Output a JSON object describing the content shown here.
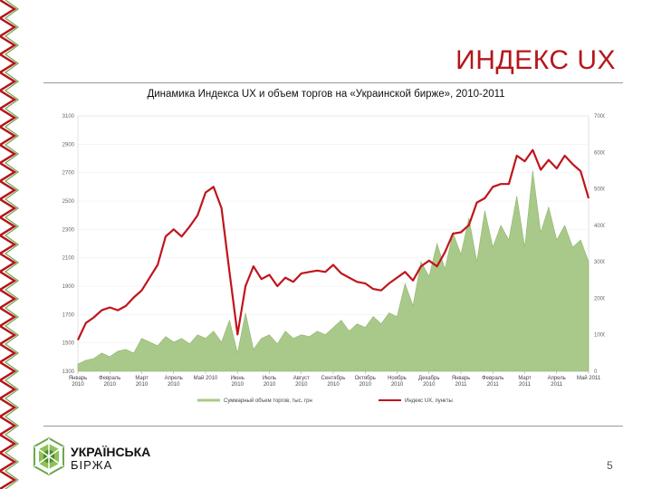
{
  "title": "ИНДЕКС UX",
  "subtitle": "Динамика Индекса UX и объем торгов на «Украинской бирже», 2010-2011",
  "page_number": "5",
  "logo": {
    "line1": "УКРАЇНСЬКА",
    "line2": "БІРЖА"
  },
  "colors": {
    "index_line": "#c0151b",
    "volume_area": "#a9c98a",
    "volume_stroke": "#8fb56d",
    "title": "#b5161b",
    "border": "#b5161b"
  },
  "chart_data": {
    "type": "area",
    "legend": {
      "position": "bottom"
    },
    "y_left": {
      "ticks": [
        "3100",
        "2900",
        "2700",
        "2500",
        "2300",
        "2100",
        "1900",
        "1700",
        "1500",
        "1300"
      ],
      "ylim": [
        1300,
        3100
      ]
    },
    "y_right": {
      "ticks": [
        "70000",
        "60000",
        "50000",
        "40000",
        "30000",
        "20000",
        "10000",
        "0"
      ],
      "ylim": [
        0,
        70000
      ]
    },
    "x_ticks": [
      [
        "Январь",
        "2010"
      ],
      [
        "Февраль",
        "2010"
      ],
      [
        "Март",
        "2010"
      ],
      [
        "Апрель",
        "2010"
      ],
      [
        "Май 2010",
        ""
      ],
      [
        "Июнь",
        "2010"
      ],
      [
        "Июль",
        "2010"
      ],
      [
        "Август",
        "2010"
      ],
      [
        "Сентябрь",
        "2010"
      ],
      [
        "Октябрь",
        "2010"
      ],
      [
        "Ноябрь",
        "2010"
      ],
      [
        "Декабрь",
        "2010"
      ],
      [
        "Январь",
        "2011"
      ],
      [
        "Февраль",
        "2011"
      ],
      [
        "Март",
        "2011"
      ],
      [
        "Апрель",
        "2011"
      ],
      [
        "Май 2011",
        ""
      ]
    ],
    "series": [
      {
        "name": "Суммарный объем торгов, тыс. грн",
        "axis": "right",
        "type": "area",
        "x": [
          0,
          0.25,
          0.5,
          0.75,
          1,
          1.25,
          1.5,
          1.75,
          2,
          2.25,
          2.5,
          2.75,
          3,
          3.25,
          3.5,
          3.75,
          4,
          4.25,
          4.5,
          4.75,
          5,
          5.25,
          5.5,
          5.75,
          6,
          6.25,
          6.5,
          6.75,
          7,
          7.25,
          7.5,
          7.75,
          8,
          8.25,
          8.5,
          8.75,
          9,
          9.25,
          9.5,
          9.75,
          10,
          10.25,
          10.5,
          10.75,
          11,
          11.25,
          11.5,
          11.75,
          12,
          12.25,
          12.5,
          12.75,
          13,
          13.25,
          13.5,
          13.75,
          14,
          14.25,
          14.5,
          14.75,
          15,
          15.25,
          15.5,
          15.75,
          16
        ],
        "values": [
          2000,
          3000,
          3500,
          5000,
          4000,
          5500,
          6000,
          5000,
          9000,
          8000,
          7000,
          9500,
          8000,
          9000,
          7500,
          10000,
          9000,
          11000,
          8000,
          14000,
          5000,
          16000,
          6000,
          9000,
          10000,
          7500,
          11000,
          9000,
          10000,
          9500,
          11000,
          10000,
          12000,
          14000,
          11000,
          13000,
          12000,
          15000,
          13000,
          16000,
          15000,
          24000,
          18000,
          30000,
          26000,
          35000,
          28000,
          38000,
          32000,
          42000,
          30000,
          44000,
          34000,
          40000,
          36000,
          48000,
          34000,
          55000,
          38000,
          45000,
          36000,
          40000,
          34000,
          36000,
          30000
        ]
      },
      {
        "name": "Индекс UX, пункты",
        "axis": "left",
        "type": "line",
        "x": [
          0,
          0.25,
          0.5,
          0.75,
          1,
          1.25,
          1.5,
          1.75,
          2,
          2.25,
          2.5,
          2.75,
          3,
          3.25,
          3.5,
          3.75,
          4,
          4.25,
          4.5,
          4.75,
          5,
          5.25,
          5.5,
          5.75,
          6,
          6.25,
          6.5,
          6.75,
          7,
          7.25,
          7.5,
          7.75,
          8,
          8.25,
          8.5,
          8.75,
          9,
          9.25,
          9.5,
          9.75,
          10,
          10.25,
          10.5,
          10.75,
          11,
          11.25,
          11.5,
          11.75,
          12,
          12.25,
          12.5,
          12.75,
          13,
          13.25,
          13.5,
          13.75,
          14,
          14.25,
          14.5,
          14.75,
          15,
          15.25,
          15.5,
          15.75,
          16
        ],
        "values": [
          1520,
          1640,
          1680,
          1730,
          1750,
          1730,
          1760,
          1820,
          1870,
          1960,
          2050,
          2250,
          2300,
          2250,
          2320,
          2400,
          2560,
          2600,
          2450,
          2000,
          1560,
          1900,
          2040,
          1950,
          1980,
          1900,
          1960,
          1930,
          1990,
          2000,
          2010,
          2000,
          2050,
          1990,
          1960,
          1930,
          1920,
          1880,
          1870,
          1920,
          1960,
          2000,
          1940,
          2040,
          2080,
          2040,
          2140,
          2270,
          2280,
          2330,
          2490,
          2520,
          2600,
          2620,
          2620,
          2820,
          2780,
          2860,
          2720,
          2790,
          2730,
          2820,
          2760,
          2710,
          2520
        ]
      }
    ]
  }
}
